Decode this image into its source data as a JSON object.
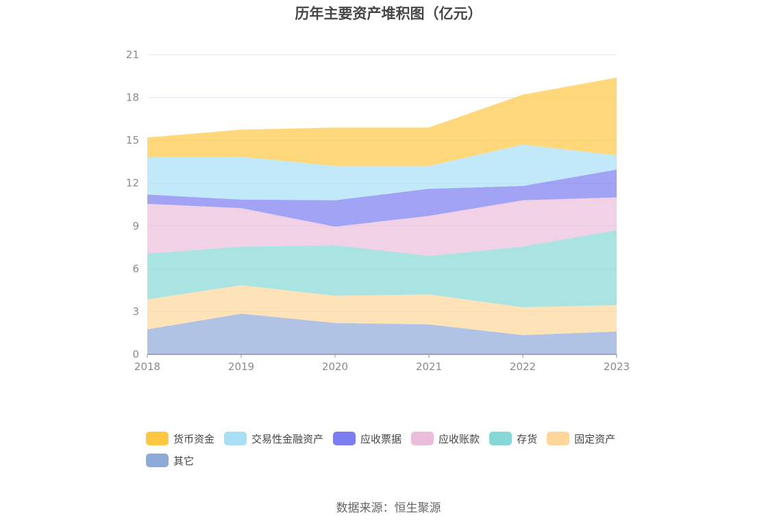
{
  "title": "历年主要资产堆积图（亿元）",
  "source": "数据来源：恒生聚源",
  "chart_data": {
    "type": "area",
    "stacked": true,
    "x": [
      "2018",
      "2019",
      "2020",
      "2021",
      "2022",
      "2023"
    ],
    "ylim": [
      0,
      21
    ],
    "yticks": [
      0,
      3,
      6,
      9,
      12,
      15,
      18,
      21
    ],
    "grid": true,
    "legend_position": "bottom",
    "series": [
      {
        "name": "其它",
        "color": "#8eaad8",
        "values": [
          1.75,
          2.85,
          2.2,
          2.1,
          1.35,
          1.6
        ]
      },
      {
        "name": "固定资产",
        "color": "#fdd79a",
        "values": [
          2.1,
          2.0,
          1.9,
          2.1,
          1.95,
          1.85
        ]
      },
      {
        "name": "存货",
        "color": "#85d8d6",
        "values": [
          3.2,
          2.7,
          3.55,
          2.7,
          4.25,
          5.25
        ]
      },
      {
        "name": "应收账款",
        "color": "#ebbdda",
        "values": [
          3.5,
          2.7,
          1.3,
          2.8,
          3.25,
          2.3
        ]
      },
      {
        "name": "应收票据",
        "color": "#7a7cf0",
        "values": [
          0.65,
          0.6,
          1.85,
          1.9,
          1.0,
          1.95
        ]
      },
      {
        "name": "交易性金融资产",
        "color": "#a8dff7",
        "values": [
          2.6,
          3.0,
          2.4,
          1.6,
          2.9,
          1.0
        ]
      },
      {
        "name": "货币资金",
        "color": "#fdc741",
        "values": [
          1.4,
          1.9,
          2.7,
          2.7,
          3.5,
          5.45
        ]
      }
    ],
    "legend_order": [
      "货币资金",
      "交易性金融资产",
      "应收票据",
      "应收账款",
      "存货",
      "固定资产",
      "其它"
    ]
  }
}
